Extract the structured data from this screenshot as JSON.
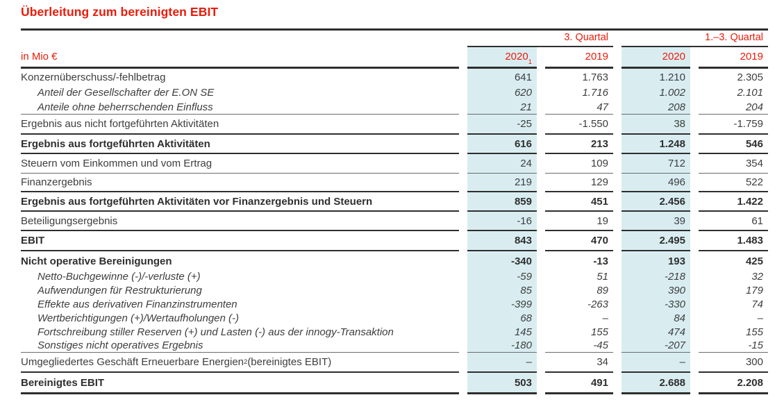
{
  "title": "Überleitung zum bereinigten EBIT",
  "colors": {
    "accent_red": "#ea1b0a",
    "highlight_teal": "#d9edf1",
    "text": "#3d3d3d"
  },
  "table": {
    "unit_label": "in Mio €",
    "col_groups": [
      {
        "label": "3. Quartal"
      },
      {
        "label": "1.–3. Quartal"
      }
    ],
    "columns": [
      {
        "label": "2020",
        "sup": "1",
        "highlight": true
      },
      {
        "label": "2019",
        "sup": "",
        "highlight": false
      },
      {
        "label": "2020",
        "sup": "",
        "highlight": true
      },
      {
        "label": "2019",
        "sup": "",
        "highlight": false
      }
    ],
    "rows": [
      {
        "label": "Konzernüberschuss/-fehlbetrag",
        "style": "plain",
        "values": [
          "641",
          "1.763",
          "1.210",
          "2.305"
        ]
      },
      {
        "label": "Anteil der Gesellschafter der E.ON SE",
        "style": "sub",
        "values": [
          "620",
          "1.716",
          "1.002",
          "2.101"
        ]
      },
      {
        "label": "Anteile ohne beherrschenden Einfluss",
        "style": "sub",
        "values": [
          "21",
          "47",
          "208",
          "204"
        ]
      },
      {
        "label": "Ergebnis aus nicht fortgeführten Aktivitäten",
        "style": "plain",
        "values": [
          "-25",
          "-1.550",
          "38",
          "-1.759"
        ]
      },
      {
        "label": "Ergebnis aus fortgeführten Aktivitäten",
        "style": "bold",
        "values": [
          "616",
          "213",
          "1.248",
          "546"
        ]
      },
      {
        "label": "Steuern vom Einkommen und vom Ertrag",
        "style": "plain",
        "values": [
          "24",
          "109",
          "712",
          "354"
        ]
      },
      {
        "label": "Finanzergebnis",
        "style": "plain",
        "values": [
          "219",
          "129",
          "496",
          "522"
        ]
      },
      {
        "label": "Ergebnis aus fortgeführten Aktivitäten vor Finanzergebnis und Steuern",
        "style": "bold",
        "values": [
          "859",
          "451",
          "2.456",
          "1.422"
        ]
      },
      {
        "label": "Beteiligungsergebnis",
        "style": "plain",
        "values": [
          "-16",
          "19",
          "39",
          "61"
        ]
      },
      {
        "label": "EBIT",
        "style": "bold",
        "values": [
          "843",
          "470",
          "2.495",
          "1.483"
        ]
      },
      {
        "label": "Nicht operative Bereinigungen",
        "style": "bold",
        "values": [
          "-340",
          "-13",
          "193",
          "425"
        ]
      },
      {
        "label": "Netto-Buchgewinne (-)/-verluste (+)",
        "style": "sub",
        "values": [
          "-59",
          "51",
          "-218",
          "32"
        ]
      },
      {
        "label": "Aufwendungen für Restrukturierung",
        "style": "sub",
        "values": [
          "85",
          "89",
          "390",
          "179"
        ]
      },
      {
        "label": "Effekte aus derivativen Finanzinstrumenten",
        "style": "sub",
        "values": [
          "-399",
          "-263",
          "-330",
          "74"
        ]
      },
      {
        "label": "Wertberichtigungen (+)/Wertaufholungen (-)",
        "style": "sub",
        "values": [
          "68",
          "–",
          "84",
          "–"
        ]
      },
      {
        "label": "Fortschreibung stiller Reserven (+) und Lasten (-) aus der innogy-Transaktion",
        "style": "sub",
        "values": [
          "145",
          "155",
          "474",
          "155"
        ]
      },
      {
        "label": "Sonstiges nicht operatives Ergebnis",
        "style": "sub",
        "values": [
          "-180",
          "-45",
          "-207",
          "-15"
        ]
      },
      {
        "label": "Umgegliedertes Geschäft Erneuerbare Energien",
        "label_sup": "2",
        "label_suffix": " (bereinigtes EBIT)",
        "style": "plain",
        "values": [
          "–",
          "34",
          "–",
          "300"
        ]
      },
      {
        "label": "Bereinigtes EBIT",
        "style": "bold",
        "values": [
          "503",
          "491",
          "2.688",
          "2.208"
        ]
      }
    ]
  }
}
